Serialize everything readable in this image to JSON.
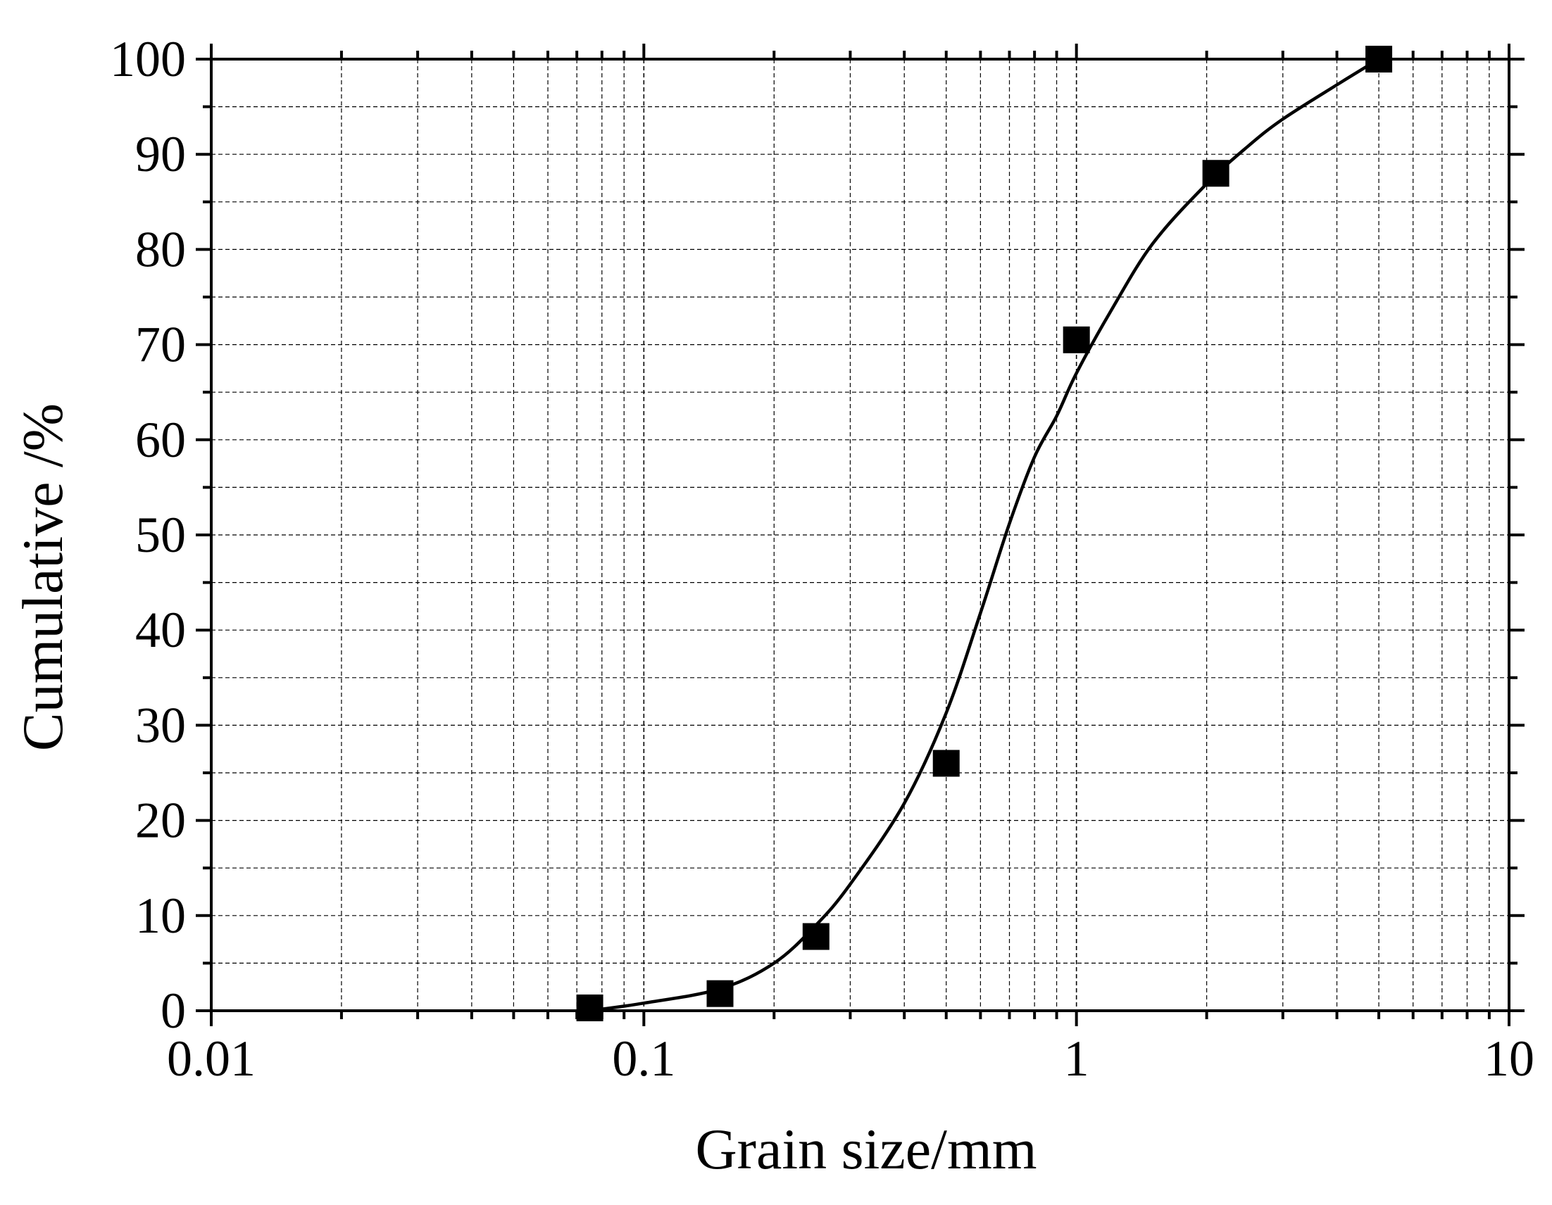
{
  "chart_data": {
    "type": "scatter",
    "title": "",
    "xlabel": "Grain size/mm",
    "ylabel": "Cumulative /%",
    "xscale": "log",
    "xlim": [
      0.01,
      10
    ],
    "ylim": [
      0,
      100
    ],
    "x_tick_labels": [
      "0.01",
      "0.1",
      "1",
      "10"
    ],
    "y_tick_labels": [
      "0",
      "10",
      "20",
      "30",
      "40",
      "50",
      "60",
      "70",
      "80",
      "90",
      "100"
    ],
    "grid": true,
    "legend": "none",
    "marker": "filled-square",
    "series": [
      {
        "x": [
          0.075,
          0.15,
          0.25,
          0.5,
          1.0,
          2.1,
          5.0
        ],
        "y": [
          0.3,
          1.8,
          7.8,
          26.0,
          70.5,
          88.0,
          100.0
        ]
      }
    ],
    "fit_curve": {
      "x": [
        0.075,
        0.1,
        0.15,
        0.2,
        0.25,
        0.3,
        0.4,
        0.5,
        0.6,
        0.7,
        0.8,
        0.9,
        1.0,
        1.2,
        1.5,
        2.0,
        2.5,
        3.0,
        4.0,
        5.0
      ],
      "y": [
        0.0,
        0.8,
        2.3,
        5.0,
        9.0,
        13.3,
        21.8,
        31.3,
        41.8,
        51.2,
        58.2,
        62.5,
        67.0,
        73.5,
        80.6,
        86.9,
        90.9,
        93.7,
        97.3,
        100.0
      ]
    },
    "colors": {
      "marks": "#000000",
      "grid": "#000000",
      "background": "#ffffff"
    }
  }
}
